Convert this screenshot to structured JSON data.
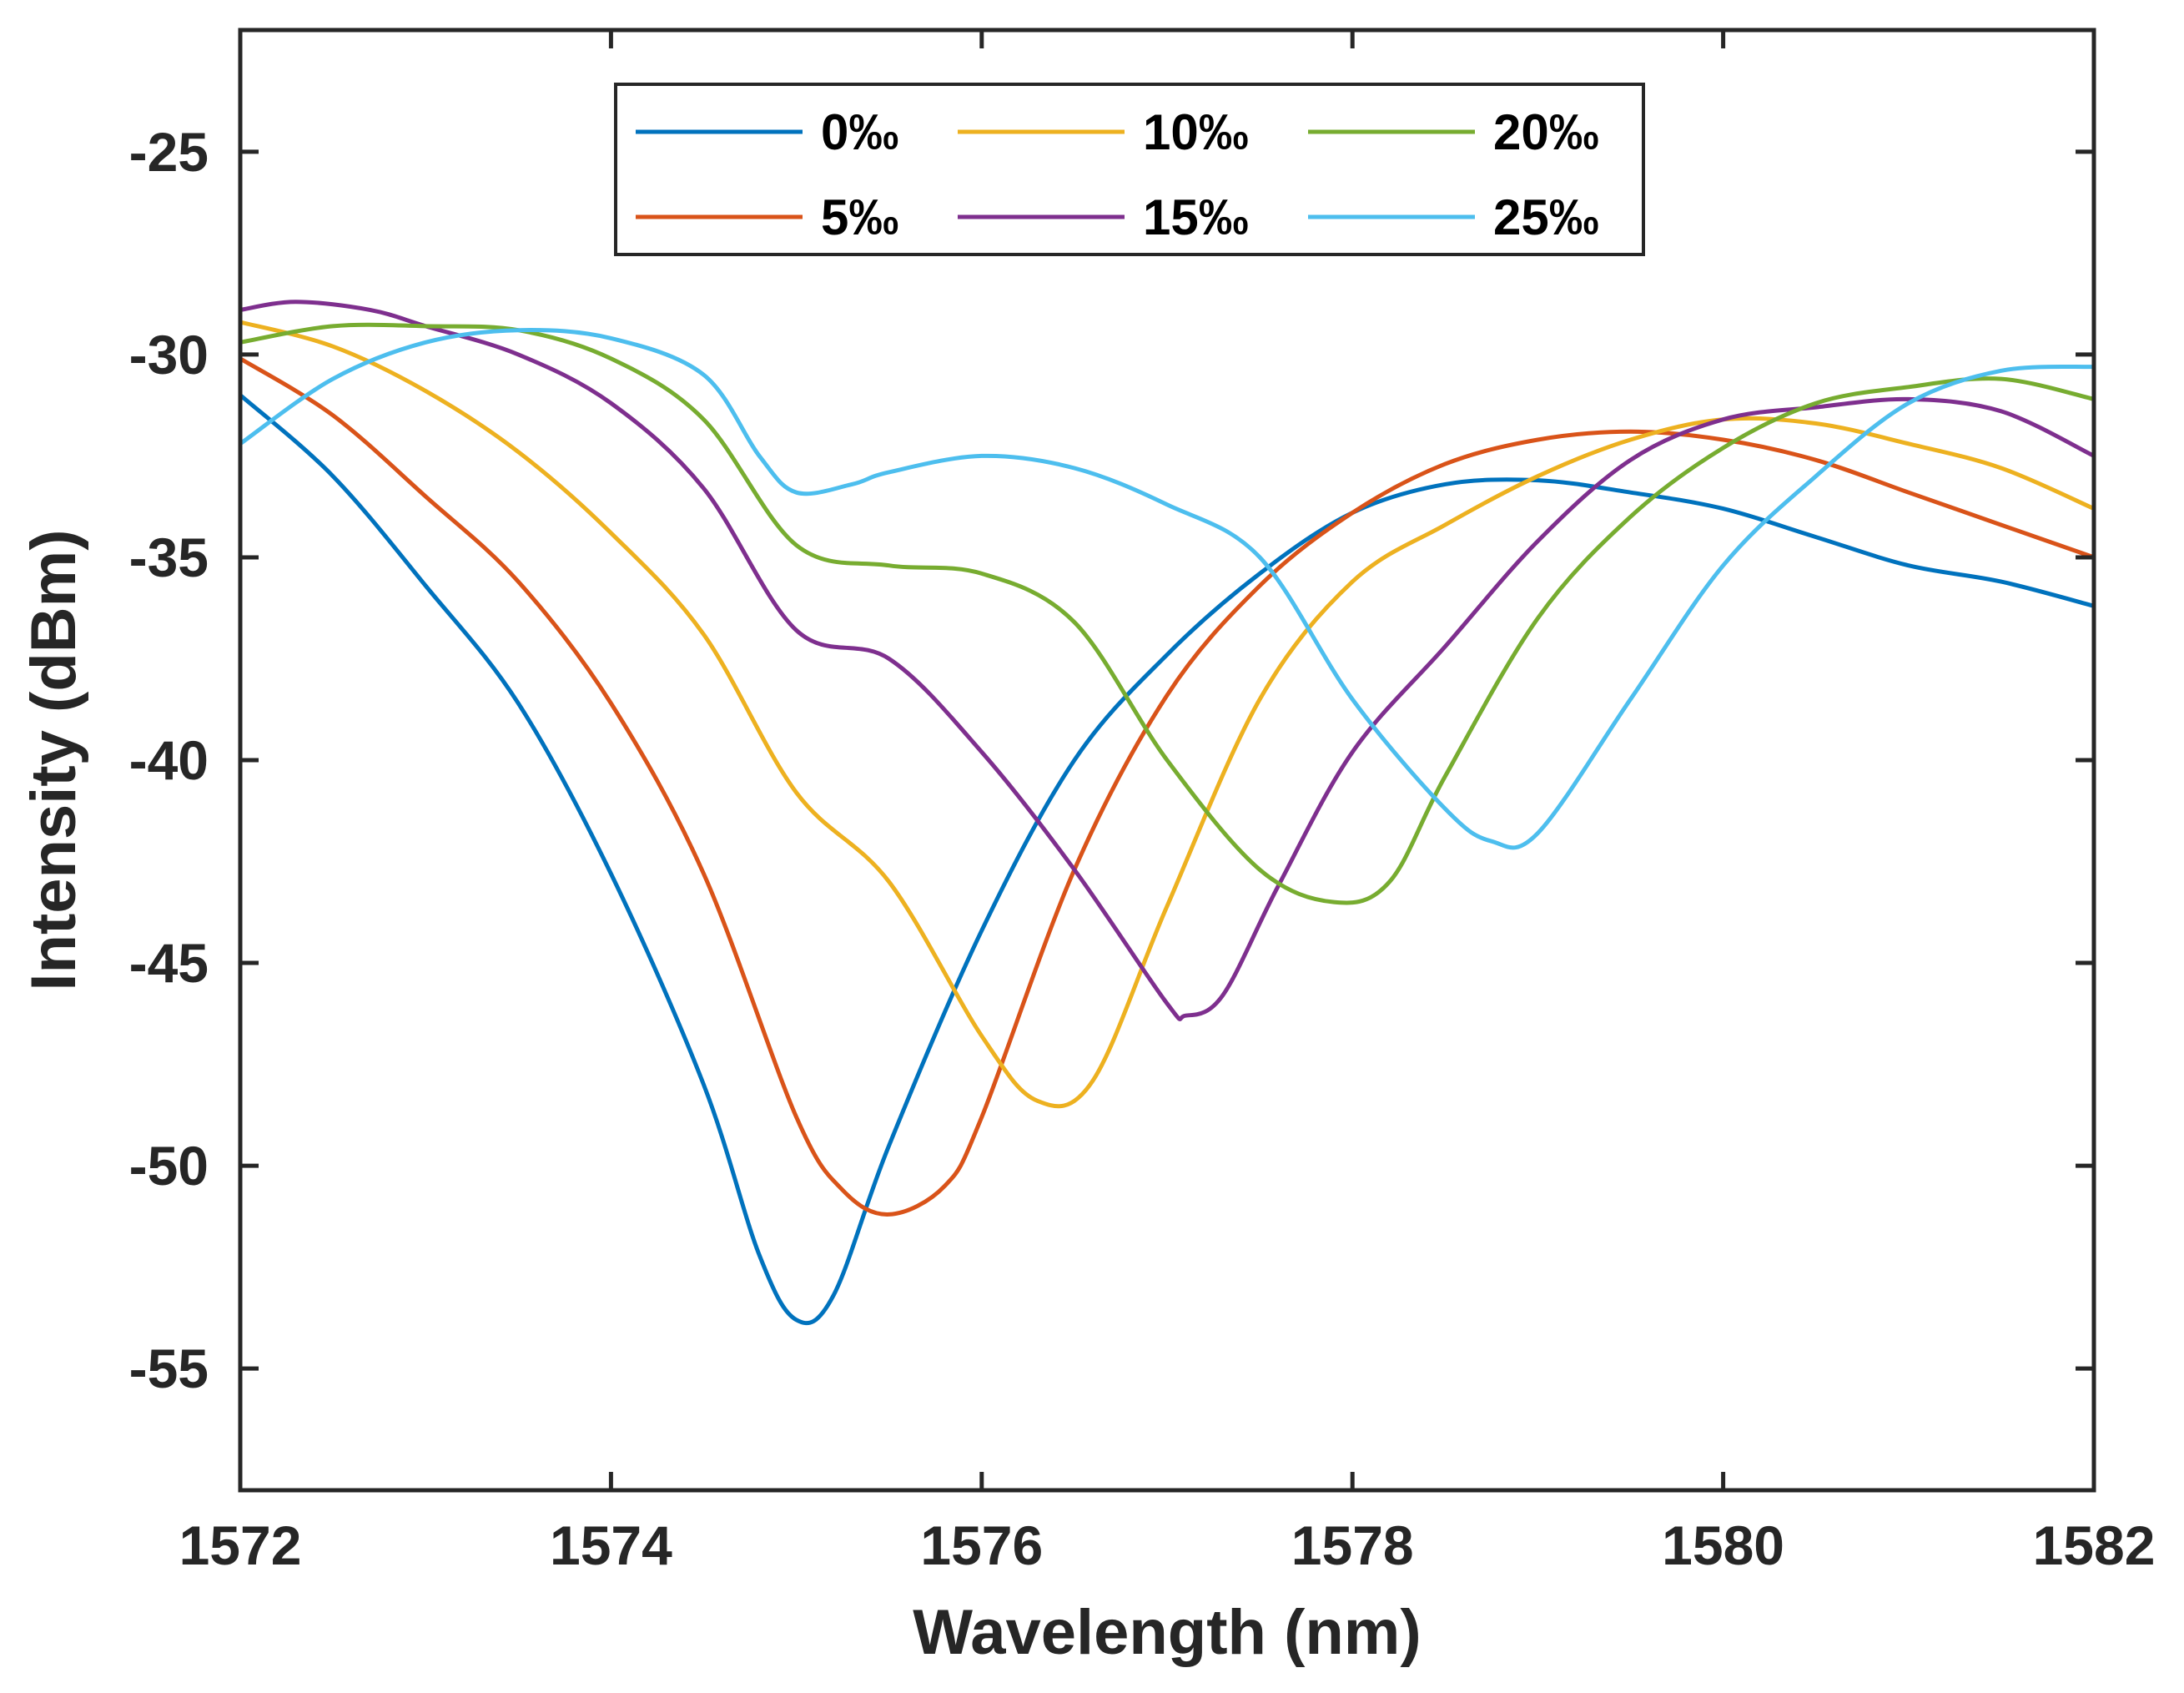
{
  "chart_data": {
    "type": "line",
    "title": "",
    "xlabel": "Wavelength (nm)",
    "ylabel": "Intensity (dBm)",
    "xlim": [
      1572,
      1582
    ],
    "ylim": [
      -58,
      -22
    ],
    "xticks": [
      1572,
      1574,
      1576,
      1578,
      1580,
      1582
    ],
    "yticks": [
      -25,
      -30,
      -35,
      -40,
      -45,
      -50,
      -55
    ],
    "xtick_labels": [
      "1572",
      "1574",
      "1576",
      "1578",
      "1580",
      "1582"
    ],
    "ytick_labels": [
      "-25",
      "-30",
      "-35",
      "-40",
      "-45",
      "-50",
      "-55"
    ],
    "grid": false,
    "legend_position": "top-center",
    "series": [
      {
        "name": "0‰",
        "color": "#0072BD",
        "x": [
          1572,
          1572.5,
          1573,
          1573.5,
          1574,
          1574.5,
          1574.8,
          1575,
          1575.2,
          1575.5,
          1576,
          1576.5,
          1577,
          1577.5,
          1578,
          1578.5,
          1579,
          1579.5,
          1580,
          1580.5,
          1581,
          1581.5,
          1582
        ],
        "y": [
          -31,
          -33,
          -35.7,
          -38.6,
          -42.8,
          -48,
          -52.2,
          -53.8,
          -53.2,
          -49.5,
          -44.2,
          -40,
          -37.4,
          -35.4,
          -33.9,
          -33.2,
          -33.1,
          -33.4,
          -33.8,
          -34.5,
          -35.2,
          -35.6,
          -36.2
        ]
      },
      {
        "name": "5‰",
        "color": "#D95319",
        "x": [
          1572,
          1572.5,
          1573,
          1573.5,
          1574,
          1574.5,
          1575,
          1575.25,
          1575.5,
          1575.8,
          1576,
          1576.5,
          1577,
          1577.5,
          1578,
          1578.5,
          1579,
          1579.5,
          1580,
          1580.5,
          1581,
          1581.5,
          1582
        ],
        "y": [
          -30.1,
          -31.5,
          -33.5,
          -35.6,
          -38.6,
          -42.8,
          -48.8,
          -50.6,
          -51.2,
          -50.5,
          -48.8,
          -42.7,
          -38.4,
          -35.7,
          -33.9,
          -32.7,
          -32.1,
          -31.9,
          -32.1,
          -32.6,
          -33.4,
          -34.2,
          -35
        ]
      },
      {
        "name": "10‰",
        "color": "#EDB120",
        "x": [
          1572,
          1572.5,
          1573,
          1573.5,
          1574,
          1574.5,
          1575,
          1575.5,
          1576,
          1576.3,
          1576.6,
          1577,
          1577.5,
          1578,
          1578.5,
          1579,
          1579.5,
          1580,
          1580.5,
          1581,
          1581.5,
          1582
        ],
        "y": [
          -29.2,
          -29.8,
          -30.9,
          -32.4,
          -34.4,
          -36.9,
          -40.8,
          -43,
          -46.8,
          -48.4,
          -47.9,
          -43.6,
          -38.5,
          -35.6,
          -34.2,
          -33,
          -32.1,
          -31.6,
          -31.7,
          -32.2,
          -32.8,
          -33.8
        ]
      },
      {
        "name": "15‰",
        "color": "#7E2F8E",
        "x": [
          1572,
          1572.3,
          1572.7,
          1573,
          1573.5,
          1574,
          1574.5,
          1575,
          1575.5,
          1576,
          1576.5,
          1577,
          1577.1,
          1577.3,
          1577.6,
          1578,
          1578.5,
          1579,
          1579.5,
          1580,
          1580.5,
          1581,
          1581.5,
          1582
        ],
        "y": [
          -28.9,
          -28.7,
          -28.9,
          -29.3,
          -30,
          -31.2,
          -33.3,
          -36.8,
          -37.5,
          -39.8,
          -42.7,
          -46,
          -46.3,
          -45.8,
          -43.1,
          -39.8,
          -37.2,
          -34.6,
          -32.6,
          -31.6,
          -31.3,
          -31.1,
          -31.4,
          -32.5
        ]
      },
      {
        "name": "20‰",
        "color": "#77AC30",
        "x": [
          1572,
          1572.5,
          1573,
          1573.5,
          1574,
          1574.5,
          1575,
          1575.5,
          1576,
          1576.5,
          1577,
          1577.5,
          1577.9,
          1578.2,
          1578.5,
          1579,
          1579.5,
          1580,
          1580.5,
          1581,
          1581.5,
          1582
        ],
        "y": [
          -29.7,
          -29.3,
          -29.3,
          -29.4,
          -30.1,
          -31.6,
          -34.7,
          -35.2,
          -35.4,
          -36.6,
          -40,
          -42.7,
          -43.5,
          -43,
          -40.4,
          -36.5,
          -34,
          -32.3,
          -31.2,
          -30.8,
          -30.6,
          -31.1
        ]
      },
      {
        "name": "25‰",
        "color": "#4DBEEE",
        "x": [
          1572,
          1572.5,
          1573,
          1573.5,
          1574,
          1574.5,
          1574.8,
          1575,
          1575.3,
          1575.5,
          1576,
          1576.5,
          1577,
          1577.5,
          1578,
          1578.5,
          1578.75,
          1579,
          1579.5,
          1580,
          1580.5,
          1581,
          1581.5,
          1582
        ],
        "y": [
          -32.2,
          -30.6,
          -29.7,
          -29.4,
          -29.6,
          -30.5,
          -32.5,
          -33.4,
          -33.2,
          -32.9,
          -32.5,
          -32.8,
          -33.7,
          -35,
          -38.5,
          -41.2,
          -42,
          -41.8,
          -38.5,
          -35.2,
          -33,
          -31.2,
          -30.4,
          -30.3
        ]
      }
    ]
  }
}
